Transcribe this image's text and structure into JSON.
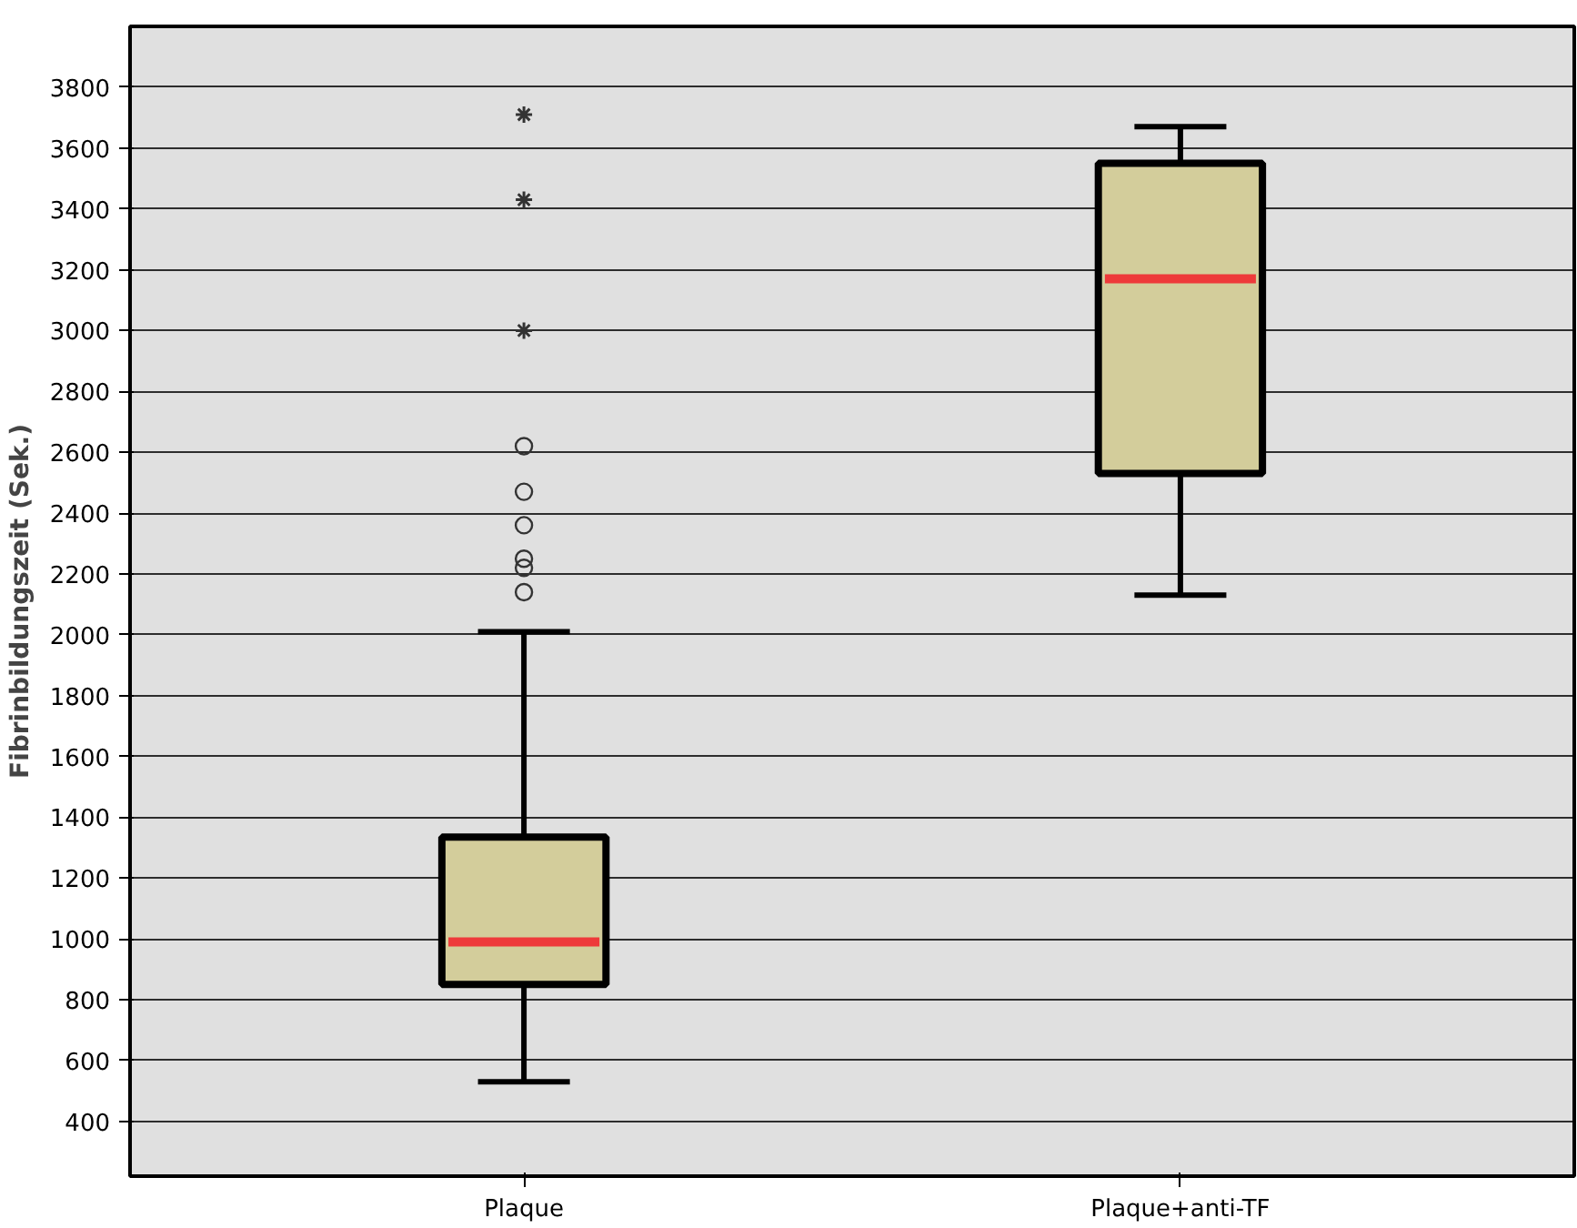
{
  "chart_data": {
    "type": "box",
    "ylabel": "Fibrinbildungszeit (Sek.)",
    "categories": [
      "Plaque",
      "Plaque+anti-TF"
    ],
    "boxes": [
      {
        "low": 530,
        "q1": 850,
        "median": 990,
        "q3": 1335,
        "high": 2010,
        "outliers": [
          2140,
          2220,
          2250,
          2360,
          2470,
          2620,
          3000,
          3430,
          3710
        ]
      },
      {
        "low": 2130,
        "q1": 2530,
        "median": 3170,
        "q3": 3550,
        "high": 3670
      }
    ],
    "color": "#d3cd9b",
    "ylim": [
      220,
      4000
    ],
    "yticks": [
      400,
      600,
      800,
      1000,
      1200,
      1400,
      1600,
      1800,
      2000,
      2200,
      2400,
      2600,
      2800,
      3000,
      3200,
      3400,
      3600,
      3800
    ],
    "grid": "y"
  }
}
